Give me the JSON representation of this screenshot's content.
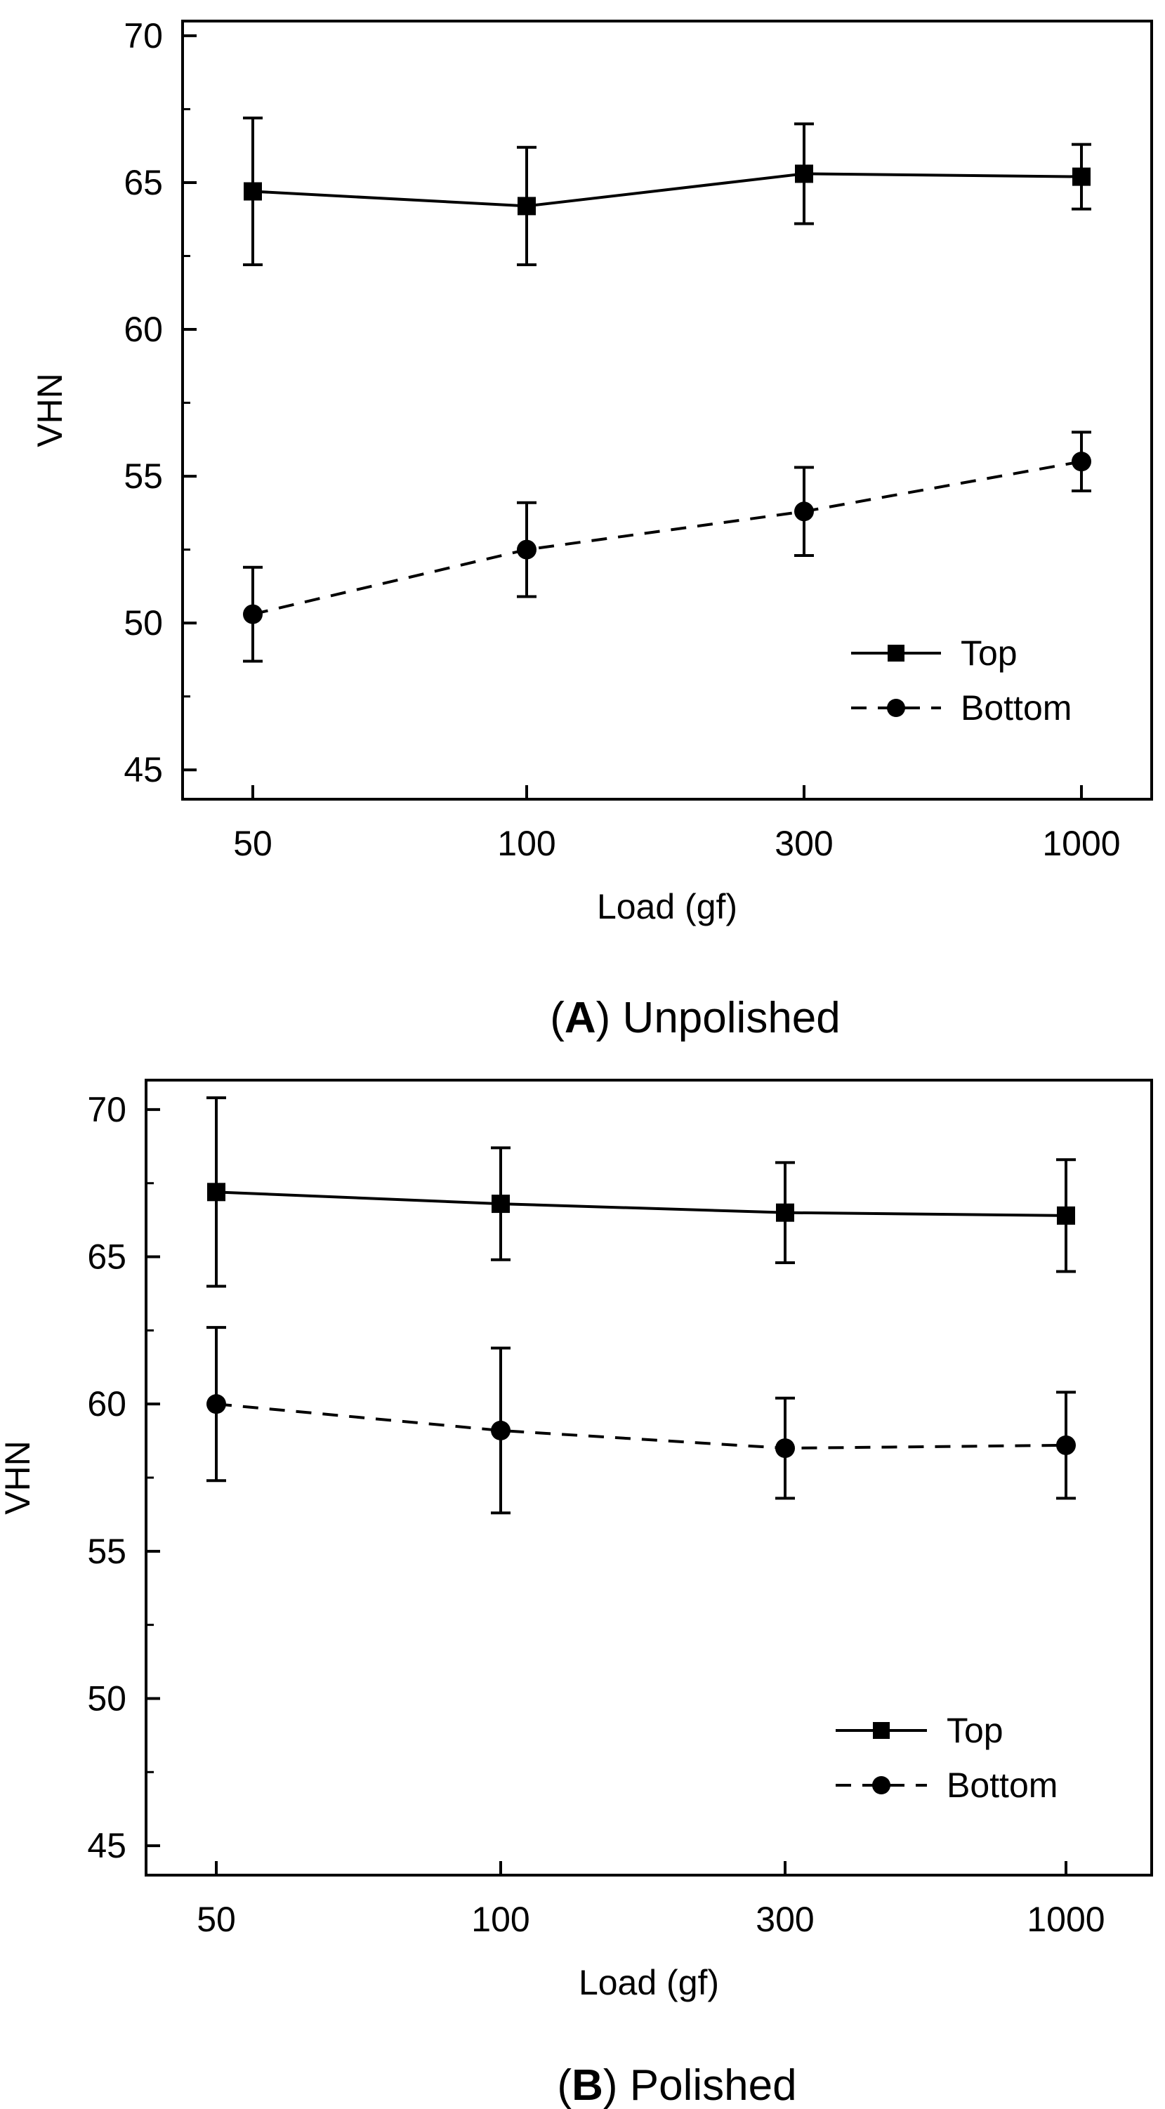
{
  "chart_data": [
    {
      "type": "line",
      "caption_letter": "A",
      "caption_text": "Unpolished",
      "xlabel": "Load (gf)",
      "ylabel": "VHN",
      "categories": [
        "50",
        "100",
        "300",
        "1000"
      ],
      "ylim": [
        44,
        70.5
      ],
      "yticks": [
        45,
        50,
        55,
        60,
        65,
        70
      ],
      "grid": false,
      "legend_position": "bottom-right",
      "series": [
        {
          "name": "Top",
          "marker": "square",
          "line": "solid",
          "values": [
            64.7,
            64.2,
            65.3,
            65.2
          ],
          "err_low": [
            62.2,
            62.2,
            63.6,
            64.1
          ],
          "err_high": [
            67.2,
            66.2,
            67.0,
            66.3
          ]
        },
        {
          "name": "Bottom",
          "marker": "circle",
          "line": "dashed",
          "values": [
            50.3,
            52.5,
            53.8,
            55.5
          ],
          "err_low": [
            48.7,
            50.9,
            52.3,
            54.5
          ],
          "err_high": [
            51.9,
            54.1,
            55.3,
            56.5
          ]
        }
      ]
    },
    {
      "type": "line",
      "caption_letter": "B",
      "caption_text": "Polished",
      "xlabel": "Load (gf)",
      "ylabel": "VHN",
      "categories": [
        "50",
        "100",
        "300",
        "1000"
      ],
      "ylim": [
        44,
        71
      ],
      "yticks": [
        45,
        50,
        55,
        60,
        65,
        70
      ],
      "grid": false,
      "legend_position": "bottom-right",
      "series": [
        {
          "name": "Top",
          "marker": "square",
          "line": "solid",
          "values": [
            67.2,
            66.8,
            66.5,
            66.4
          ],
          "err_low": [
            64.0,
            64.9,
            64.8,
            64.5
          ],
          "err_high": [
            70.4,
            68.7,
            68.2,
            68.3
          ]
        },
        {
          "name": "Bottom",
          "marker": "circle",
          "line": "dashed",
          "values": [
            60.0,
            59.1,
            58.5,
            58.6
          ],
          "err_low": [
            57.4,
            56.3,
            56.8,
            56.8
          ],
          "err_high": [
            62.6,
            61.9,
            60.2,
            60.4
          ]
        }
      ]
    }
  ]
}
